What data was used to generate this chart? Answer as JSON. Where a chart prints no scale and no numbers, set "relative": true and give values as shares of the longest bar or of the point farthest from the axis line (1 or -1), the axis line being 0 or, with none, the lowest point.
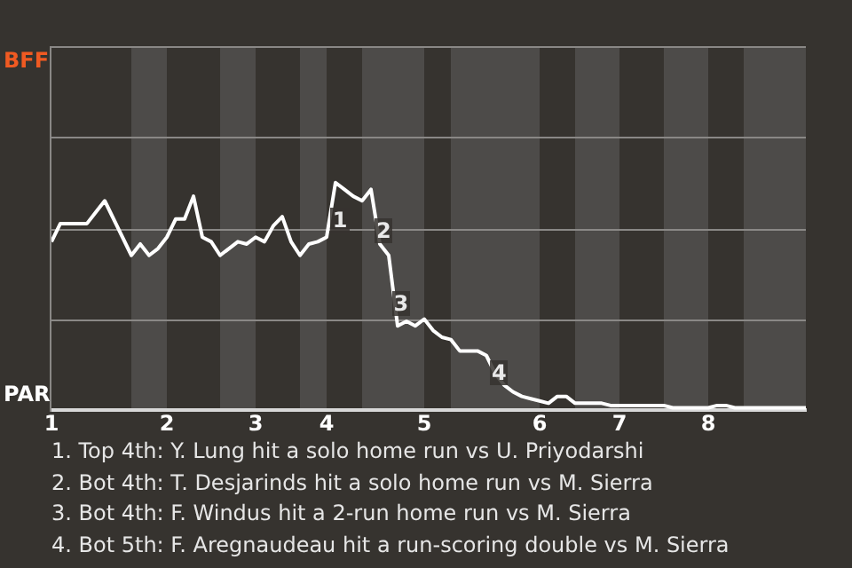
{
  "chart_data": {
    "type": "line",
    "relative": true,
    "categories": [
      "1",
      null,
      null,
      null,
      null,
      null,
      null,
      null,
      null,
      null,
      null,
      null,
      null,
      "2",
      null,
      null,
      null,
      null,
      null,
      null,
      null,
      null,
      null,
      "3",
      null,
      null,
      null,
      null,
      null,
      null,
      null,
      "4",
      null,
      null,
      null,
      null,
      null,
      null,
      null,
      null,
      null,
      null,
      "5",
      null,
      null,
      null,
      null,
      null,
      null,
      null,
      null,
      null,
      null,
      null,
      null,
      "6",
      null,
      null,
      null,
      null,
      null,
      null,
      null,
      null,
      "7",
      null,
      null,
      null,
      null,
      null,
      null,
      null,
      null,
      null,
      "8",
      null,
      null,
      null,
      null,
      null,
      null,
      null,
      null,
      null,
      null,
      null
    ],
    "series": [
      {
        "color": "#ffffff",
        "values": [
          0.74,
          0.82,
          0.82,
          0.82,
          0.82,
          0.87,
          0.92,
          0.84,
          0.76,
          0.68,
          0.73,
          0.68,
          0.71,
          0.76,
          0.84,
          0.84,
          0.94,
          0.76,
          0.74,
          0.68,
          0.71,
          0.74,
          0.73,
          0.76,
          0.74,
          0.81,
          0.85,
          0.74,
          0.68,
          0.73,
          0.74,
          0.76,
          1,
          0.97,
          0.94,
          0.92,
          0.97,
          0.73,
          0.68,
          0.37,
          0.39,
          0.37,
          0.4,
          0.35,
          0.32,
          0.31,
          0.26,
          0.26,
          0.26,
          0.24,
          0.16,
          0.11,
          0.08,
          0.06,
          0.05,
          0.04,
          0.03,
          0.06,
          0.06,
          0.03,
          0.03,
          0.03,
          0.03,
          0.02,
          0.02,
          0.02,
          0.02,
          0.02,
          0.02,
          0.02,
          0.01,
          0.01,
          0.01,
          0.01,
          0.01,
          0.02,
          0.02,
          0.01,
          0.01,
          0.01,
          0.01,
          0.01,
          0.01,
          0.01,
          0.01,
          0.01
        ]
      }
    ],
    "ref_lines": [
      {
        "axis": "y",
        "value": 0.4,
        "color": "#8a8886"
      },
      {
        "axis": "y",
        "value": 0.8,
        "color": "#8a8886"
      },
      {
        "axis": "y",
        "value": 1.2,
        "color": "#8a8886"
      }
    ],
    "annotations": [
      "BFF",
      "PAR",
      "1",
      "2",
      "3",
      "4",
      "1. Top 4th: Y. Lung hit a solo home run vs U. Priyodarshi",
      "2. Bot 4th: T. Desjarinds hit a solo home run vs M. Sierra",
      "3. Bot 4th: F. Windus hit a 2-run home run vs M. Sierra",
      "4. Bot 5th: F. Aregnaudeau hit a run-scoring double vs M. Sierra"
    ]
  }
}
